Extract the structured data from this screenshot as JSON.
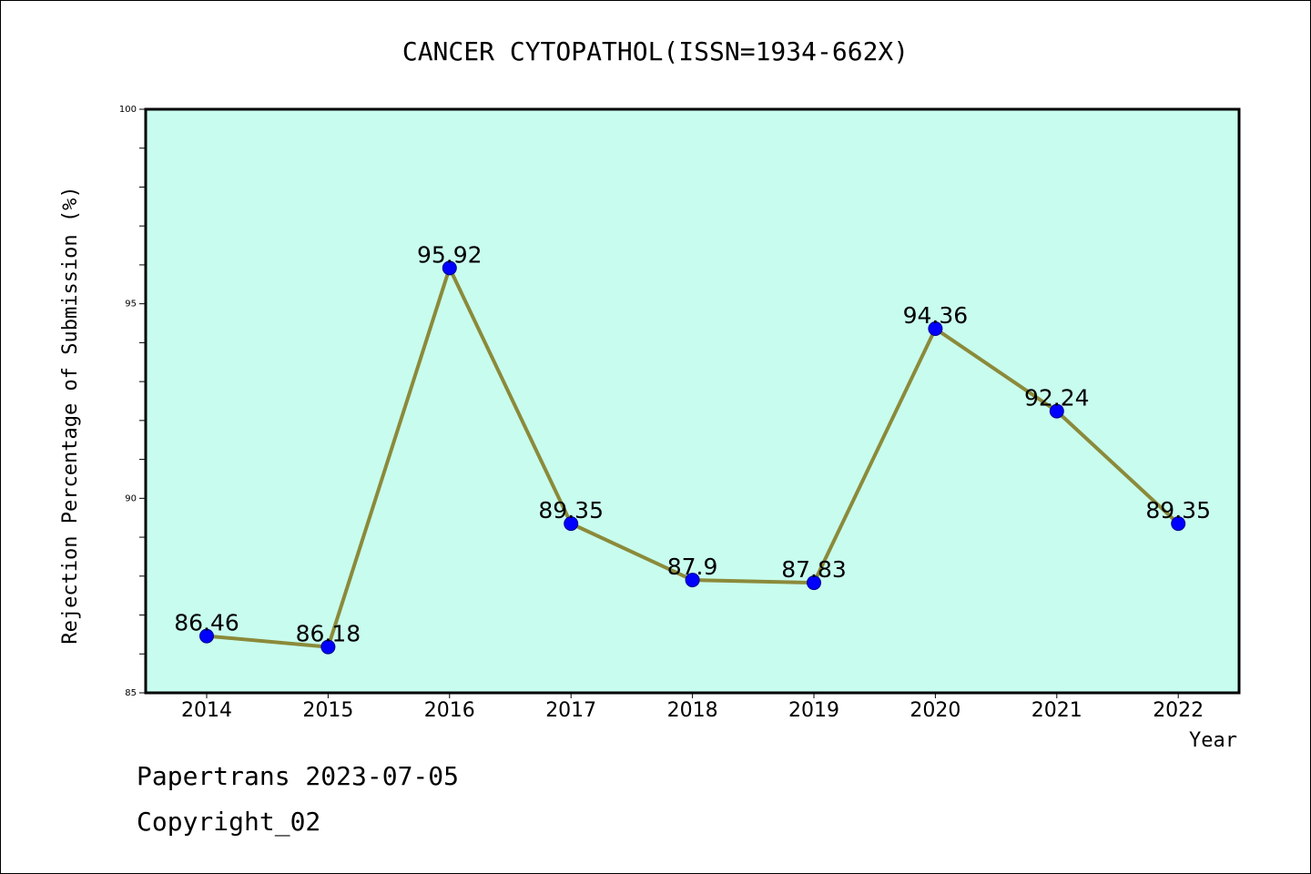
{
  "chart_data": {
    "type": "line",
    "title": "CANCER CYTOPATHOL(ISSN=1934-662X)",
    "xlabel": "Year",
    "ylabel": "Rejection Percentage of Submission (%)",
    "categories": [
      "2014",
      "2015",
      "2016",
      "2017",
      "2018",
      "2019",
      "2020",
      "2021",
      "2022"
    ],
    "values": [
      86.46,
      86.18,
      95.92,
      89.35,
      87.9,
      87.83,
      94.36,
      92.24,
      89.35
    ],
    "data_labels": [
      "86.46",
      "86.18",
      "95.92",
      "89.35",
      "87.9",
      "87.83",
      "94.36",
      "92.24",
      "89.35"
    ],
    "ylim": [
      85,
      100
    ],
    "yticks": [
      85,
      90,
      95,
      100
    ],
    "grid": false,
    "colors": {
      "plot_background": "#c8fcee",
      "line": "#8b8a3a",
      "marker": "#0000ff"
    }
  },
  "footer": {
    "line1": "Papertrans 2023-07-05",
    "line2": "Copyright_02"
  }
}
